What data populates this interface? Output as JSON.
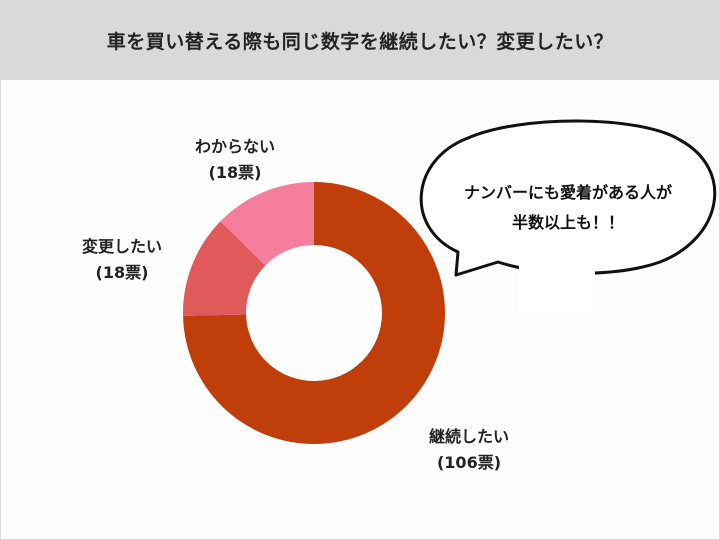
{
  "title": "車を買い替える際も同じ数字を継続したい？変更したい？",
  "callout": {
    "line1": "ナンバーにも愛着がある人が",
    "line2": "半数以上も！！"
  },
  "chart_data": {
    "type": "pie",
    "donut": true,
    "title": "車を買い替える際も同じ数字を継続したい？変更したい？",
    "slices": [
      {
        "label": "継続したい",
        "value": 106,
        "value_text": "(106票)",
        "color": "#bf3e0a"
      },
      {
        "label": "変更したい",
        "value": 18,
        "value_text": "(18票)",
        "color": "#e05a5c"
      },
      {
        "label": "わからない",
        "value": 18,
        "value_text": "(18票)",
        "color": "#f47e9c"
      }
    ]
  }
}
